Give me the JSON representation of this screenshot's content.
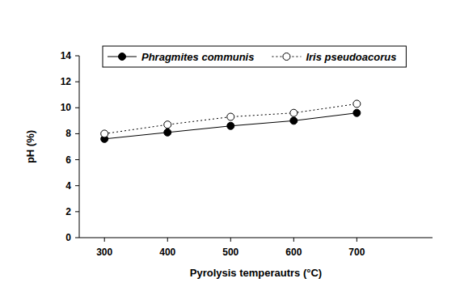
{
  "chart_data": {
    "type": "line",
    "x_label": "Pyrolysis temperautrs (°C)",
    "y_label": "pH (%)",
    "x": [
      300,
      400,
      500,
      600,
      700
    ],
    "xlim": [
      260,
      820
    ],
    "xticks": [
      300,
      400,
      500,
      600,
      700
    ],
    "ylim": [
      0,
      14
    ],
    "yticks": [
      0,
      2,
      4,
      6,
      8,
      10,
      12,
      14
    ],
    "grid": false,
    "legend": "top",
    "series": [
      {
        "name": "Phragmites communis",
        "color": "#000000",
        "marker": "circle",
        "line_style": "solid",
        "values": [
          7.6,
          8.1,
          8.6,
          9.0,
          9.6
        ]
      },
      {
        "name": "Iris pseudoacorus",
        "color": "#000000",
        "marker": "open-circle",
        "line_style": "dotted",
        "values": [
          8.0,
          8.7,
          9.3,
          9.6,
          10.3
        ]
      }
    ]
  }
}
